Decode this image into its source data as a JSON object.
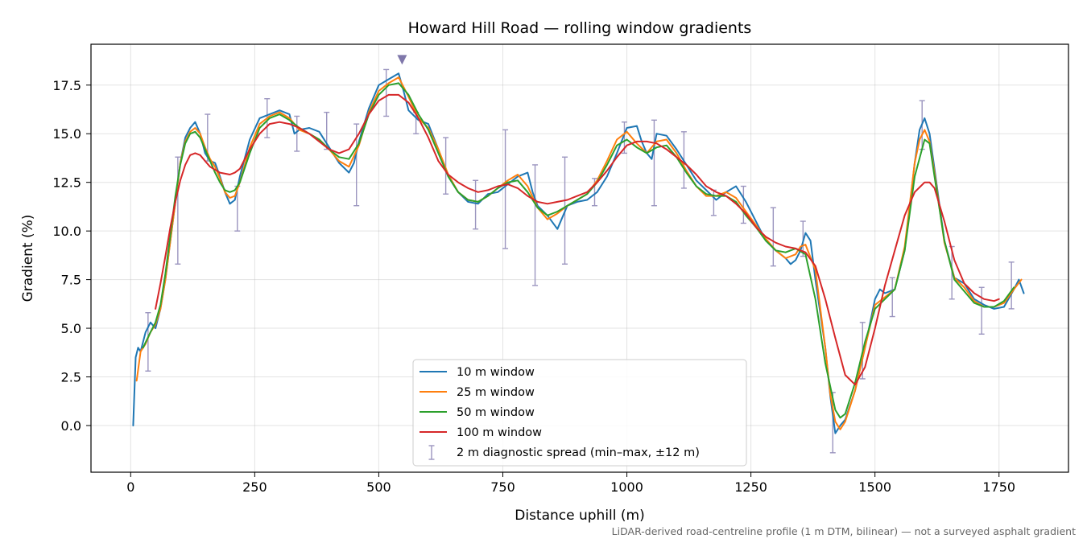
{
  "chart_data": {
    "type": "line",
    "title": "Howard Hill Road — rolling window gradients",
    "xlabel": "Distance uphill (m)",
    "ylabel": "Gradient (%)",
    "xlim": [
      -80,
      1890
    ],
    "ylim": [
      -2.4,
      19.6
    ],
    "xticks": [
      0,
      250,
      500,
      750,
      1000,
      1250,
      1500,
      1750
    ],
    "yticks": [
      0.0,
      2.5,
      5.0,
      7.5,
      10.0,
      12.5,
      15.0,
      17.5
    ],
    "xtick_labels": [
      "0",
      "250",
      "500",
      "750",
      "1000",
      "1250",
      "1500",
      "1750"
    ],
    "ytick_labels": [
      "0.0",
      "2.5",
      "5.0",
      "7.5",
      "10.0",
      "12.5",
      "15.0",
      "17.5"
    ],
    "grid": true,
    "legend_position": "lower-center",
    "footnote": "LiDAR-derived road-centreline profile (1 m DTM, bilinear) — not a surveyed asphalt gradient",
    "peak_marker": {
      "x": 547,
      "y": 18.8,
      "color": "#7f77aa"
    },
    "series": [
      {
        "name": "10 m window",
        "color": "#1f77b4",
        "x": [
          5,
          10,
          15,
          20,
          25,
          30,
          40,
          50,
          60,
          70,
          80,
          90,
          100,
          110,
          120,
          130,
          140,
          150,
          160,
          170,
          180,
          190,
          200,
          210,
          220,
          240,
          260,
          280,
          300,
          320,
          330,
          340,
          360,
          380,
          400,
          420,
          440,
          450,
          460,
          480,
          500,
          520,
          540,
          550,
          560,
          580,
          600,
          620,
          640,
          660,
          680,
          700,
          720,
          740,
          760,
          780,
          800,
          810,
          820,
          840,
          860,
          880,
          900,
          920,
          940,
          960,
          980,
          1000,
          1020,
          1030,
          1040,
          1050,
          1060,
          1080,
          1100,
          1120,
          1140,
          1160,
          1180,
          1200,
          1220,
          1240,
          1260,
          1280,
          1300,
          1320,
          1330,
          1340,
          1350,
          1360,
          1370,
          1380,
          1400,
          1410,
          1420,
          1430,
          1440,
          1460,
          1480,
          1500,
          1510,
          1520,
          1540,
          1560,
          1580,
          1590,
          1600,
          1610,
          1620,
          1640,
          1660,
          1680,
          1700,
          1720,
          1740,
          1760,
          1780,
          1790,
          1800
        ],
        "y": [
          0.0,
          3.5,
          4.0,
          3.8,
          4.3,
          4.8,
          5.3,
          5.0,
          6.0,
          7.5,
          9.5,
          11.5,
          13.5,
          14.8,
          15.3,
          15.6,
          15.0,
          14.0,
          13.6,
          13.5,
          12.8,
          12.0,
          11.4,
          11.6,
          12.8,
          14.7,
          15.8,
          16.0,
          16.2,
          16.0,
          15.0,
          15.2,
          15.3,
          15.1,
          14.3,
          13.5,
          13.0,
          13.5,
          14.6,
          16.3,
          17.5,
          17.8,
          18.1,
          17.2,
          16.2,
          15.7,
          15.5,
          14.2,
          12.8,
          12.0,
          11.5,
          11.4,
          11.9,
          12.0,
          12.4,
          12.8,
          13.0,
          12.0,
          11.3,
          10.8,
          10.1,
          11.3,
          11.5,
          11.6,
          12.0,
          12.8,
          14.0,
          15.3,
          15.4,
          14.6,
          14.0,
          13.7,
          15.0,
          14.9,
          14.2,
          13.4,
          12.6,
          12.1,
          11.6,
          12.0,
          12.3,
          11.5,
          10.5,
          9.5,
          9.0,
          8.6,
          8.3,
          8.5,
          9.0,
          9.9,
          9.5,
          7.5,
          4.0,
          1.5,
          -0.4,
          0.0,
          0.3,
          1.8,
          4.0,
          6.5,
          7.0,
          6.8,
          7.0,
          9.0,
          13.5,
          15.2,
          15.8,
          15.0,
          13.2,
          9.5,
          7.6,
          7.3,
          6.5,
          6.2,
          6.0,
          6.1,
          7.0,
          7.5,
          6.8
        ]
      },
      {
        "name": "25 m window",
        "color": "#ff7f0e",
        "x": [
          12,
          20,
          30,
          40,
          50,
          60,
          70,
          80,
          90,
          100,
          110,
          120,
          130,
          140,
          150,
          160,
          170,
          180,
          190,
          200,
          210,
          220,
          240,
          260,
          280,
          300,
          320,
          340,
          360,
          380,
          400,
          420,
          440,
          460,
          480,
          500,
          520,
          540,
          560,
          580,
          600,
          620,
          640,
          660,
          680,
          700,
          720,
          740,
          760,
          780,
          800,
          820,
          840,
          860,
          880,
          900,
          920,
          940,
          960,
          980,
          1000,
          1020,
          1040,
          1060,
          1080,
          1100,
          1120,
          1140,
          1160,
          1180,
          1200,
          1220,
          1240,
          1260,
          1280,
          1300,
          1320,
          1340,
          1350,
          1360,
          1380,
          1400,
          1410,
          1420,
          1430,
          1440,
          1460,
          1480,
          1500,
          1520,
          1540,
          1560,
          1580,
          1590,
          1600,
          1610,
          1620,
          1640,
          1660,
          1680,
          1700,
          1720,
          1740,
          1760,
          1780,
          1795
        ],
        "y": [
          2.3,
          3.8,
          4.2,
          4.8,
          5.2,
          6.0,
          7.5,
          9.5,
          11.5,
          13.5,
          14.6,
          15.1,
          15.3,
          15.0,
          14.3,
          13.7,
          13.3,
          12.7,
          12.0,
          11.7,
          11.8,
          12.5,
          14.3,
          15.5,
          15.9,
          16.1,
          15.8,
          15.2,
          15.0,
          14.7,
          14.2,
          13.6,
          13.3,
          14.4,
          16.1,
          17.2,
          17.6,
          17.9,
          16.9,
          15.8,
          15.3,
          14.2,
          12.9,
          12.0,
          11.6,
          11.5,
          11.8,
          12.2,
          12.6,
          12.9,
          12.3,
          11.2,
          10.6,
          10.9,
          11.3,
          11.6,
          11.9,
          12.6,
          13.6,
          14.7,
          15.1,
          14.5,
          14.0,
          14.6,
          14.7,
          14.0,
          13.1,
          12.3,
          11.8,
          11.8,
          12.0,
          11.7,
          11.0,
          10.3,
          9.6,
          9.0,
          8.6,
          8.8,
          9.2,
          9.3,
          8.0,
          4.0,
          1.6,
          0.2,
          -0.2,
          0.2,
          1.8,
          4.0,
          6.2,
          6.6,
          7.0,
          9.2,
          13.5,
          14.7,
          15.2,
          14.6,
          13.0,
          9.4,
          7.6,
          7.1,
          6.4,
          6.1,
          6.1,
          6.3,
          7.0,
          7.5
        ]
      },
      {
        "name": "50 m window",
        "color": "#2ca02c",
        "x": [
          25,
          40,
          50,
          60,
          70,
          80,
          90,
          100,
          110,
          120,
          130,
          140,
          150,
          160,
          170,
          180,
          190,
          200,
          210,
          220,
          240,
          260,
          280,
          300,
          320,
          340,
          360,
          380,
          400,
          420,
          440,
          460,
          480,
          500,
          520,
          540,
          560,
          580,
          600,
          620,
          640,
          660,
          680,
          700,
          720,
          740,
          760,
          780,
          800,
          820,
          840,
          860,
          880,
          900,
          920,
          940,
          960,
          980,
          1000,
          1020,
          1040,
          1060,
          1080,
          1100,
          1120,
          1140,
          1160,
          1180,
          1200,
          1220,
          1240,
          1260,
          1280,
          1300,
          1320,
          1340,
          1360,
          1380,
          1400,
          1420,
          1430,
          1440,
          1460,
          1480,
          1500,
          1520,
          1540,
          1560,
          1580,
          1600,
          1610,
          1620,
          1640,
          1660,
          1680,
          1700,
          1720,
          1740,
          1760,
          1780
        ],
        "y": [
          4.0,
          4.8,
          5.3,
          6.2,
          7.8,
          9.8,
          11.8,
          13.4,
          14.5,
          15.0,
          15.1,
          14.8,
          14.2,
          13.6,
          13.0,
          12.5,
          12.1,
          12.0,
          12.1,
          12.5,
          14.0,
          15.3,
          15.8,
          16.0,
          15.7,
          15.3,
          15.0,
          14.7,
          14.2,
          13.8,
          13.7,
          14.5,
          16.0,
          17.0,
          17.5,
          17.6,
          17.0,
          16.0,
          15.2,
          14.0,
          12.8,
          12.0,
          11.6,
          11.5,
          11.8,
          12.2,
          12.5,
          12.6,
          12.0,
          11.2,
          10.8,
          11.0,
          11.3,
          11.6,
          11.9,
          12.5,
          13.4,
          14.4,
          14.7,
          14.3,
          14.0,
          14.3,
          14.4,
          13.8,
          13.0,
          12.3,
          11.9,
          11.8,
          11.8,
          11.5,
          10.8,
          10.2,
          9.5,
          9.0,
          8.9,
          9.1,
          8.8,
          6.5,
          3.2,
          0.8,
          0.4,
          0.6,
          2.2,
          4.3,
          6.0,
          6.5,
          7.0,
          9.0,
          12.8,
          14.7,
          14.5,
          12.8,
          9.5,
          7.5,
          6.9,
          6.3,
          6.1,
          6.1,
          6.4,
          7.1
        ]
      },
      {
        "name": "100 m window",
        "color": "#d62728",
        "x": [
          50,
          60,
          70,
          80,
          90,
          100,
          110,
          120,
          130,
          140,
          150,
          160,
          180,
          200,
          210,
          220,
          240,
          260,
          280,
          300,
          320,
          340,
          360,
          380,
          400,
          420,
          440,
          460,
          480,
          500,
          520,
          540,
          560,
          580,
          600,
          620,
          640,
          660,
          680,
          700,
          720,
          740,
          760,
          780,
          800,
          820,
          840,
          860,
          880,
          900,
          920,
          940,
          960,
          980,
          1000,
          1020,
          1040,
          1060,
          1080,
          1100,
          1120,
          1140,
          1160,
          1180,
          1200,
          1220,
          1240,
          1260,
          1280,
          1300,
          1320,
          1340,
          1360,
          1380,
          1400,
          1420,
          1440,
          1460,
          1480,
          1500,
          1520,
          1540,
          1560,
          1580,
          1600,
          1610,
          1620,
          1640,
          1660,
          1680,
          1700,
          1720,
          1740,
          1750
        ],
        "y": [
          6.0,
          7.3,
          8.7,
          10.2,
          11.5,
          12.6,
          13.4,
          13.9,
          14.0,
          13.9,
          13.6,
          13.3,
          13.0,
          12.9,
          13.0,
          13.2,
          14.2,
          15.0,
          15.5,
          15.6,
          15.5,
          15.3,
          15.0,
          14.6,
          14.2,
          14.0,
          14.2,
          15.0,
          16.0,
          16.7,
          17.0,
          17.0,
          16.6,
          15.8,
          14.8,
          13.6,
          12.9,
          12.5,
          12.2,
          12.0,
          12.1,
          12.3,
          12.4,
          12.2,
          11.8,
          11.5,
          11.4,
          11.5,
          11.6,
          11.8,
          12.0,
          12.5,
          13.1,
          13.8,
          14.4,
          14.6,
          14.6,
          14.5,
          14.2,
          13.8,
          13.4,
          12.9,
          12.3,
          12.0,
          11.8,
          11.4,
          10.9,
          10.2,
          9.7,
          9.4,
          9.2,
          9.1,
          8.9,
          8.2,
          6.5,
          4.5,
          2.6,
          2.1,
          3.0,
          5.0,
          7.2,
          9.0,
          10.8,
          12.0,
          12.5,
          12.5,
          12.2,
          10.5,
          8.5,
          7.3,
          6.8,
          6.5,
          6.4,
          6.5
        ]
      }
    ],
    "error_bars": {
      "name": "2 m diagnostic spread (min–max, ±12 m)",
      "color": "#9b95bf",
      "x": [
        35,
        95,
        155,
        215,
        275,
        335,
        395,
        455,
        515,
        575,
        635,
        695,
        755,
        815,
        875,
        935,
        995,
        1055,
        1115,
        1175,
        1235,
        1295,
        1355,
        1415,
        1475,
        1535,
        1595,
        1655,
        1715,
        1775
      ],
      "low": [
        2.8,
        8.3,
        13.6,
        10.0,
        14.8,
        14.1,
        14.2,
        11.3,
        15.9,
        15.0,
        11.9,
        10.1,
        9.1,
        7.2,
        8.3,
        11.3,
        14.0,
        11.3,
        12.2,
        10.8,
        10.4,
        8.2,
        8.7,
        -1.4,
        2.4,
        5.6,
        14.2,
        6.5,
        4.7,
        6.0
      ],
      "high": [
        5.8,
        13.8,
        16.0,
        12.3,
        16.8,
        15.9,
        16.1,
        15.5,
        18.3,
        16.1,
        14.8,
        12.6,
        15.2,
        13.4,
        13.8,
        12.7,
        15.6,
        15.7,
        15.1,
        12.1,
        12.3,
        11.2,
        10.5,
        1.7,
        5.3,
        7.6,
        16.7,
        9.2,
        7.1,
        8.4
      ]
    }
  }
}
